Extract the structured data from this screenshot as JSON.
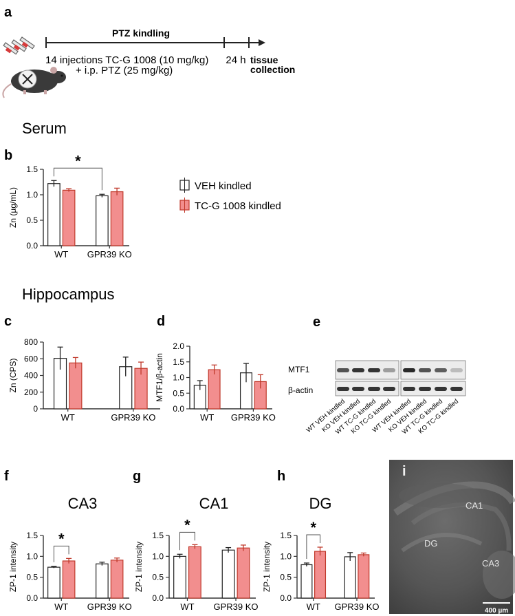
{
  "panels": {
    "a": {
      "letter": "a",
      "timeline_title": "PTZ kindling",
      "line1": "14 injections TC-G 1008 (10 mg/kg)",
      "line2": "+ i.p. PTZ (25 mg/kg)",
      "interval": "24 h",
      "end1": "tissue",
      "end2": "collection"
    },
    "serum_title": "Serum",
    "hippo_title": "Hippocampus",
    "e": {
      "letter": "e",
      "band1": "MTF1",
      "band2": "β-actin",
      "lanes": [
        "WT VEH kindled",
        "KO VEH kindled",
        "WT TC-G kindled",
        "KO TC-G kindled",
        "WT VEH kindled",
        "KO VEH kindled",
        "WT TC-G kindled",
        "KO TC-G kindled"
      ],
      "mtf1_intensity": [
        0.7,
        0.85,
        0.85,
        0.35,
        0.9,
        0.7,
        0.65,
        0.2
      ],
      "actin_intensity": [
        0.85,
        0.85,
        0.85,
        0.85,
        0.85,
        0.85,
        0.85,
        0.85
      ]
    },
    "i": {
      "letter": "i",
      "label_ca1": "CA1",
      "label_dg": "DG",
      "label_ca3": "CA3",
      "scalebar": "400 µm"
    }
  },
  "legend": [
    {
      "label": "VEH kindled",
      "color": "#ffffff"
    },
    {
      "label": "TC-G 1008 kindled",
      "color": "#f28e8e"
    }
  ],
  "colors": {
    "veh": "#ffffff",
    "tcg": "#f28e8e",
    "tcg_err": "#c0392b",
    "axis": "#333333"
  },
  "chart_data": [
    {
      "id": "b",
      "letter": "b",
      "type": "bar",
      "title": "",
      "ylabel": "Zn (µg/mL)",
      "categories": [
        "WT",
        "GPR39 KO"
      ],
      "ylim": [
        0,
        1.5
      ],
      "yticks": [
        "0.0",
        "0.5",
        "1.0",
        "1.5"
      ],
      "ytick_values": [
        0,
        0.5,
        1.0,
        1.5
      ],
      "series": [
        {
          "name": "VEH kindled",
          "values": [
            1.22,
            0.98
          ],
          "err": [
            0.06,
            0.03
          ]
        },
        {
          "name": "TC-G 1008 kindled",
          "values": [
            1.09,
            1.06
          ],
          "err": [
            0.03,
            0.07
          ]
        }
      ],
      "sig": {
        "from": "WT-VEH kindled",
        "to": "GPR39 KO-VEH kindled",
        "mark": "*"
      }
    },
    {
      "id": "c",
      "letter": "c",
      "type": "bar",
      "title": "",
      "ylabel": "Zn (CPS)",
      "categories": [
        "WT",
        "GPR39 KO"
      ],
      "ylim": [
        0,
        800
      ],
      "yticks": [
        "0",
        "200",
        "400",
        "600",
        "800"
      ],
      "ytick_values": [
        0,
        200,
        400,
        600,
        800
      ],
      "series": [
        {
          "name": "VEH kindled",
          "values": [
            605,
            505
          ],
          "err": [
            135,
            115
          ]
        },
        {
          "name": "TC-G 1008 kindled",
          "values": [
            550,
            485
          ],
          "err": [
            65,
            75
          ]
        }
      ],
      "sig": null
    },
    {
      "id": "d",
      "letter": "d",
      "type": "bar",
      "title": "",
      "ylabel": "MTF1/β-actin",
      "categories": [
        "WT",
        "GPR39 KO"
      ],
      "ylim": [
        0,
        2.0
      ],
      "yticks": [
        "0.0",
        "0.5",
        "1.0",
        "1.5",
        "2.0"
      ],
      "ytick_values": [
        0,
        0.5,
        1.0,
        1.5,
        2.0
      ],
      "series": [
        {
          "name": "VEH kindled",
          "values": [
            0.75,
            1.15
          ],
          "err": [
            0.15,
            0.3
          ]
        },
        {
          "name": "TC-G 1008 kindled",
          "values": [
            1.25,
            0.87
          ],
          "err": [
            0.15,
            0.22
          ]
        }
      ],
      "sig": null
    },
    {
      "id": "f",
      "letter": "f",
      "type": "bar",
      "title": "CA3",
      "ylabel": "ZP-1 intensity",
      "categories": [
        "WT",
        "GPR39 KO"
      ],
      "ylim": [
        0,
        1.5
      ],
      "yticks": [
        "0.0",
        "0.5",
        "1.0",
        "1.5"
      ],
      "ytick_values": [
        0,
        0.5,
        1.0,
        1.5
      ],
      "series": [
        {
          "name": "VEH kindled",
          "values": [
            0.74,
            0.82
          ],
          "err": [
            0.02,
            0.04
          ]
        },
        {
          "name": "TC-G 1008 kindled",
          "values": [
            0.89,
            0.91
          ],
          "err": [
            0.06,
            0.05
          ]
        }
      ],
      "sig": {
        "from": "WT-VEH kindled",
        "to": "WT-TC-G 1008 kindled",
        "mark": "*"
      }
    },
    {
      "id": "g",
      "letter": "g",
      "type": "bar",
      "title": "CA1",
      "ylabel": "ZP-1 intensity",
      "categories": [
        "WT",
        "GPR39 KO"
      ],
      "ylim": [
        0,
        1.5
      ],
      "yticks": [
        "0.0",
        "0.5",
        "1.0",
        "1.5"
      ],
      "ytick_values": [
        0,
        0.5,
        1.0,
        1.5
      ],
      "series": [
        {
          "name": "VEH kindled",
          "values": [
            1.0,
            1.15
          ],
          "err": [
            0.05,
            0.06
          ]
        },
        {
          "name": "TC-G 1008 kindled",
          "values": [
            1.23,
            1.2
          ],
          "err": [
            0.05,
            0.07
          ]
        }
      ],
      "sig": {
        "from": "WT-VEH kindled",
        "to": "WT-TC-G 1008 kindled",
        "mark": "*"
      }
    },
    {
      "id": "h",
      "letter": "h",
      "type": "bar",
      "title": "DG",
      "ylabel": "ZP-1 intensity",
      "categories": [
        "WT",
        "GPR39 KO"
      ],
      "ylim": [
        0,
        1.5
      ],
      "yticks": [
        "0.0",
        "0.5",
        "1.0",
        "1.5"
      ],
      "ytick_values": [
        0,
        0.5,
        1.0,
        1.5
      ],
      "series": [
        {
          "name": "VEH kindled",
          "values": [
            0.8,
            0.99
          ],
          "err": [
            0.04,
            0.1
          ]
        },
        {
          "name": "TC-G 1008 kindled",
          "values": [
            1.12,
            1.04
          ],
          "err": [
            0.1,
            0.04
          ]
        }
      ],
      "sig": {
        "from": "WT-VEH kindled",
        "to": "WT-TC-G 1008 kindled",
        "mark": "*"
      }
    }
  ]
}
